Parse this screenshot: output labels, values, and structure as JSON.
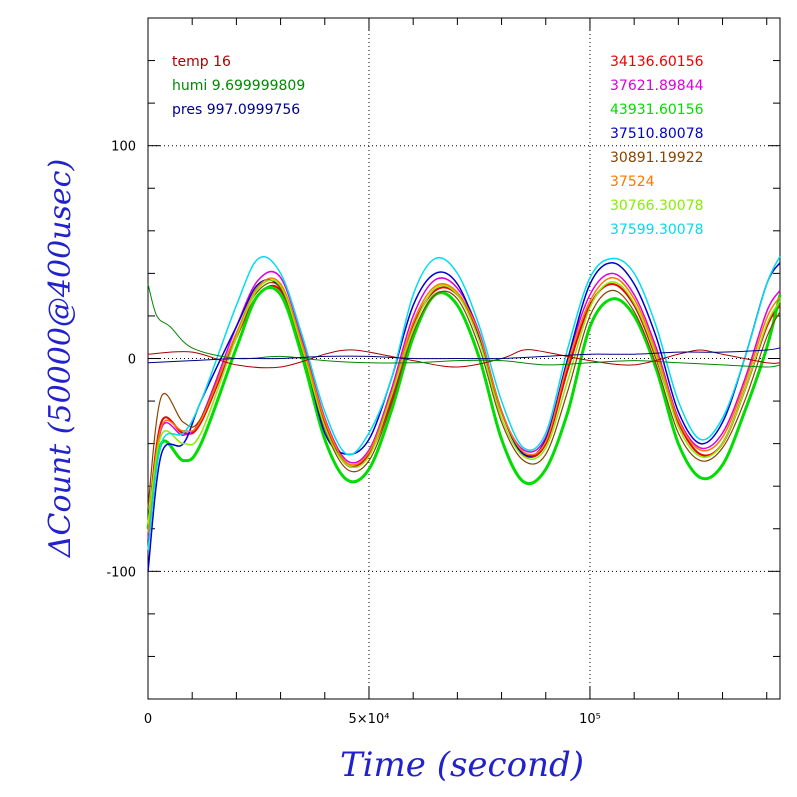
{
  "chart_data": {
    "type": "line",
    "xlabel": "Time (second)",
    "ylabel": "ΔCount (50000@400usec)",
    "xlim": [
      0,
      143000
    ],
    "ylim": [
      -160,
      160
    ],
    "x_ticks": [
      {
        "value": 0,
        "label": "0"
      },
      {
        "value": 50000,
        "label": "5×10⁴"
      },
      {
        "value": 100000,
        "label": "10⁵"
      }
    ],
    "y_ticks": [
      {
        "value": 100,
        "label": "100"
      },
      {
        "value": 0,
        "label": "0"
      },
      {
        "value": -100,
        "label": "-100"
      }
    ],
    "grid": "dotted at major ticks",
    "env_legend": [
      {
        "text": "temp 16",
        "color": "#aa0000"
      },
      {
        "text": "humi 9.699999809",
        "color": "#008800"
      },
      {
        "text": "pres 997.0999756",
        "color": "#000088"
      }
    ],
    "series_legend": [
      {
        "text": "34136.60156",
        "color": "#ee0000"
      },
      {
        "text": "37621.89844",
        "color": "#dd00dd"
      },
      {
        "text": "43931.60156",
        "color": "#00dd00"
      },
      {
        "text": "37510.80078",
        "color": "#0000cc"
      },
      {
        "text": "30891.19922",
        "color": "#884400"
      },
      {
        "text": "37524",
        "color": "#ff7700"
      },
      {
        "text": "30766.30078",
        "color": "#88ee00"
      },
      {
        "text": "37599.30078",
        "color": "#00ddee"
      }
    ],
    "series": [
      {
        "name": "34136.60156",
        "color": "#ee0000",
        "width": 2,
        "x": [
          0,
          3000,
          8000,
          12000,
          20000,
          25000,
          30000,
          35000,
          40000,
          45000,
          50000,
          55000,
          60000,
          65000,
          70000,
          75000,
          80000,
          85000,
          90000,
          95000,
          100000,
          105000,
          110000,
          115000,
          120000,
          125000,
          130000,
          135000,
          140000,
          143000
        ],
        "y": [
          -80,
          -30,
          -35,
          -30,
          10,
          30,
          32,
          5,
          -30,
          -50,
          -45,
          -20,
          15,
          32,
          30,
          10,
          -25,
          -45,
          -40,
          -5,
          25,
          35,
          25,
          0,
          -30,
          -45,
          -40,
          -15,
          15,
          25
        ]
      },
      {
        "name": "37621.89844",
        "color": "#dd00dd",
        "width": 1.5,
        "x": [
          0,
          3000,
          8000,
          12000,
          20000,
          25000,
          30000,
          35000,
          40000,
          45000,
          50000,
          55000,
          60000,
          65000,
          70000,
          75000,
          80000,
          85000,
          90000,
          95000,
          100000,
          105000,
          110000,
          115000,
          120000,
          125000,
          130000,
          135000,
          140000,
          143000
        ],
        "y": [
          -85,
          -33,
          -36,
          -28,
          15,
          37,
          38,
          8,
          -28,
          -48,
          -43,
          -15,
          20,
          37,
          33,
          12,
          -25,
          -43,
          -37,
          0,
          30,
          40,
          30,
          5,
          -28,
          -42,
          -35,
          -10,
          22,
          32
        ]
      },
      {
        "name": "43931.60156",
        "color": "#00dd00",
        "width": 3,
        "x": [
          0,
          3000,
          8000,
          12000,
          20000,
          25000,
          30000,
          35000,
          40000,
          45000,
          50000,
          55000,
          60000,
          65000,
          70000,
          75000,
          80000,
          85000,
          90000,
          95000,
          100000,
          105000,
          110000,
          115000,
          120000,
          125000,
          130000,
          135000,
          140000,
          143000
        ],
        "y": [
          -80,
          -40,
          -48,
          -40,
          5,
          30,
          30,
          0,
          -38,
          -57,
          -52,
          -25,
          10,
          30,
          25,
          0,
          -38,
          -58,
          -52,
          -25,
          15,
          28,
          20,
          -5,
          -40,
          -56,
          -50,
          -25,
          5,
          30
        ]
      },
      {
        "name": "37510.80078",
        "color": "#0000cc",
        "width": 1.5,
        "x": [
          0,
          3000,
          8000,
          12000,
          20000,
          25000,
          30000,
          35000,
          40000,
          45000,
          50000,
          55000,
          60000,
          65000,
          70000,
          75000,
          80000,
          85000,
          90000,
          95000,
          100000,
          105000,
          110000,
          115000,
          120000,
          125000,
          130000,
          135000,
          140000,
          143000
        ],
        "y": [
          -100,
          -45,
          -40,
          -20,
          15,
          35,
          33,
          5,
          -35,
          -45,
          -38,
          -10,
          25,
          40,
          35,
          10,
          -25,
          -45,
          -38,
          0,
          35,
          45,
          35,
          10,
          -25,
          -40,
          -30,
          0,
          35,
          45
        ]
      },
      {
        "name": "30891.19922",
        "color": "#884400",
        "width": 1.2,
        "x": [
          0,
          3000,
          8000,
          12000,
          20000,
          25000,
          30000,
          35000,
          40000,
          45000,
          50000,
          55000,
          60000,
          65000,
          70000,
          75000,
          80000,
          85000,
          90000,
          95000,
          100000,
          105000,
          110000,
          115000,
          120000,
          125000,
          130000,
          135000,
          140000,
          143000
        ],
        "y": [
          -70,
          -18,
          -30,
          -28,
          12,
          32,
          33,
          3,
          -33,
          -52,
          -48,
          -22,
          12,
          30,
          28,
          5,
          -30,
          -48,
          -45,
          -15,
          20,
          32,
          22,
          -3,
          -35,
          -48,
          -42,
          -20,
          10,
          22
        ]
      },
      {
        "name": "37524",
        "color": "#ff7700",
        "width": 1.5,
        "x": [
          0,
          3000,
          8000,
          12000,
          20000,
          25000,
          30000,
          35000,
          40000,
          45000,
          50000,
          55000,
          60000,
          65000,
          70000,
          75000,
          80000,
          85000,
          90000,
          95000,
          100000,
          105000,
          110000,
          115000,
          120000,
          125000,
          130000,
          135000,
          140000,
          143000
        ],
        "y": [
          -82,
          -32,
          -34,
          -29,
          12,
          34,
          35,
          6,
          -29,
          -49,
          -44,
          -17,
          17,
          34,
          31,
          11,
          -25,
          -44,
          -39,
          -2,
          27,
          38,
          28,
          3,
          -29,
          -43,
          -37,
          -12,
          19,
          29
        ]
      },
      {
        "name": "30766.30078",
        "color": "#88ee00",
        "width": 1.5,
        "x": [
          0,
          3000,
          8000,
          12000,
          20000,
          25000,
          30000,
          35000,
          40000,
          45000,
          50000,
          55000,
          60000,
          65000,
          70000,
          75000,
          80000,
          85000,
          90000,
          95000,
          100000,
          105000,
          110000,
          115000,
          120000,
          125000,
          130000,
          135000,
          140000,
          143000
        ],
        "y": [
          -78,
          -36,
          -40,
          -35,
          10,
          33,
          34,
          4,
          -32,
          -50,
          -46,
          -18,
          14,
          33,
          30,
          8,
          -28,
          -46,
          -42,
          -10,
          24,
          36,
          26,
          1,
          -32,
          -46,
          -40,
          -15,
          16,
          27
        ]
      },
      {
        "name": "37599.30078",
        "color": "#00ddee",
        "width": 1.5,
        "x": [
          0,
          3000,
          8000,
          12000,
          20000,
          25000,
          30000,
          35000,
          40000,
          45000,
          50000,
          55000,
          60000,
          65000,
          70000,
          75000,
          80000,
          85000,
          90000,
          95000,
          100000,
          105000,
          110000,
          115000,
          120000,
          125000,
          130000,
          135000,
          140000,
          143000
        ],
        "y": [
          -90,
          -40,
          -35,
          -20,
          25,
          47,
          40,
          10,
          -25,
          -45,
          -35,
          -10,
          30,
          47,
          40,
          15,
          -20,
          -42,
          -35,
          5,
          38,
          47,
          40,
          15,
          -20,
          -38,
          -28,
          0,
          35,
          48
        ]
      },
      {
        "name": "temp 16",
        "color": "#aa0000",
        "width": 1,
        "x": [
          0,
          10000,
          20000,
          30000,
          40000,
          45000,
          50000,
          60000,
          70000,
          80000,
          85000,
          90000,
          100000,
          110000,
          120000,
          125000,
          130000,
          140000,
          143000
        ],
        "y": [
          2,
          3,
          -3,
          -4,
          2,
          4,
          3,
          -1,
          -4,
          0,
          4,
          3,
          -1,
          -3,
          2,
          4,
          2,
          -2,
          -2
        ]
      },
      {
        "name": "humi 9.699999809",
        "color": "#008800",
        "width": 1,
        "x": [
          0,
          2000,
          5000,
          10000,
          20000,
          30000,
          40000,
          50000,
          60000,
          70000,
          80000,
          90000,
          100000,
          110000,
          120000,
          130000,
          140000,
          143000
        ],
        "y": [
          35,
          20,
          15,
          5,
          0,
          1,
          -1,
          -2,
          -2,
          -1,
          -1,
          -3,
          -2,
          -1,
          -2,
          -3,
          -4,
          -3
        ]
      },
      {
        "name": "pres 997.0999756",
        "color": "#000088",
        "width": 1,
        "x": [
          0,
          10000,
          20000,
          30000,
          40000,
          50000,
          60000,
          70000,
          80000,
          90000,
          100000,
          110000,
          120000,
          130000,
          140000,
          143000
        ],
        "y": [
          -2,
          -1,
          0,
          0,
          1,
          1,
          0,
          0,
          0,
          1,
          2,
          2,
          3,
          3,
          4,
          5
        ]
      }
    ]
  }
}
